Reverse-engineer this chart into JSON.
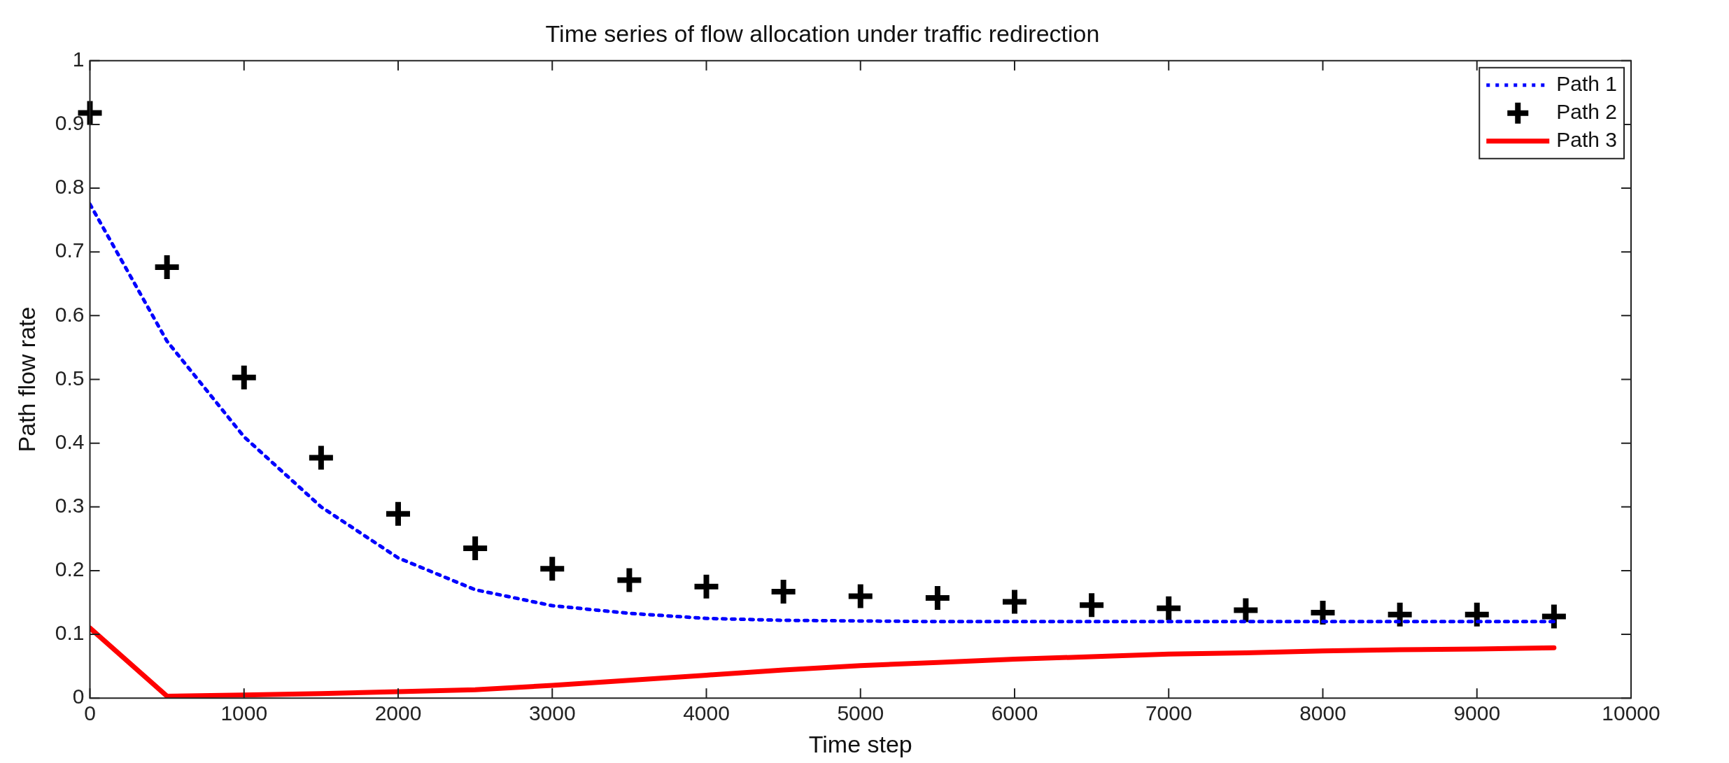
{
  "chart_data": {
    "type": "line",
    "title": "Time series of flow allocation under traffic redirection",
    "xlabel": "Time step",
    "ylabel": "Path flow rate",
    "x": [
      0,
      500,
      1000,
      1500,
      2000,
      2500,
      3000,
      3500,
      4000,
      4500,
      5000,
      5500,
      6000,
      6500,
      7000,
      7500,
      8000,
      8500,
      9000,
      9500
    ],
    "xlim": [
      0,
      10000
    ],
    "xticks": [
      0,
      1000,
      2000,
      3000,
      4000,
      5000,
      6000,
      7000,
      8000,
      9000,
      10000
    ],
    "ylim": [
      0,
      1
    ],
    "yticks": [
      0,
      0.1,
      0.2,
      0.3,
      0.4,
      0.5,
      0.6,
      0.7,
      0.8,
      0.9,
      1
    ],
    "legend": "top right",
    "series": [
      {
        "name": "Path 1",
        "color": "#0000ff",
        "type": "line",
        "line_style": "dotted",
        "marker": "none",
        "values": [
          0.775,
          0.56,
          0.41,
          0.3,
          0.22,
          0.17,
          0.145,
          0.133,
          0.125,
          0.122,
          0.121,
          0.12,
          0.12,
          0.12,
          0.12,
          0.12,
          0.12,
          0.12,
          0.12,
          0.12
        ]
      },
      {
        "name": "Path 2",
        "color": "#000000",
        "type": "scatter",
        "marker": "cross",
        "values": [
          0.918,
          0.676,
          0.503,
          0.377,
          0.289,
          0.235,
          0.203,
          0.185,
          0.175,
          0.167,
          0.16,
          0.157,
          0.151,
          0.146,
          0.141,
          0.138,
          0.134,
          0.131,
          0.131,
          0.128
        ]
      },
      {
        "name": "Path 3",
        "color": "#ff0000",
        "type": "line",
        "line_style": "solid",
        "marker": "none",
        "values": [
          0.11,
          0.003,
          0.005,
          0.007,
          0.01,
          0.013,
          0.02,
          0.028,
          0.036,
          0.044,
          0.051,
          0.056,
          0.061,
          0.065,
          0.069,
          0.071,
          0.074,
          0.076,
          0.077,
          0.079
        ]
      }
    ]
  }
}
